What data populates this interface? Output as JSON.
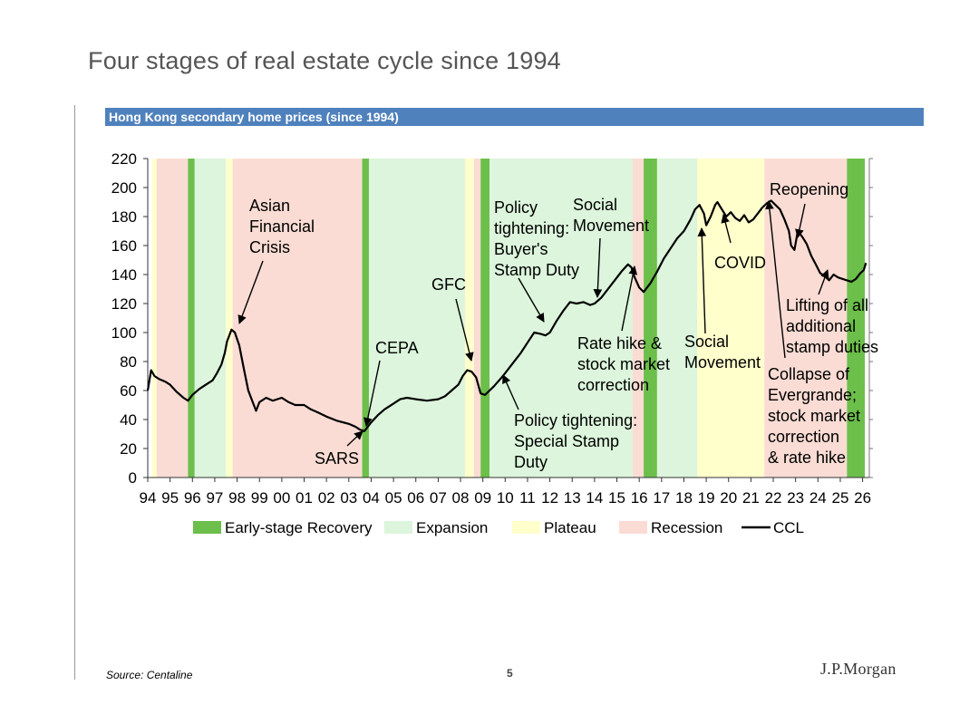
{
  "slide": {
    "title": "Four stages of real estate cycle since 1994",
    "source": "Source: Centaline",
    "page_number": "5",
    "logo": "J.P.Morgan"
  },
  "colors": {
    "banner": "#4f81bd",
    "early": "#6cbf4a",
    "expansion": "#dcf5dc",
    "plateau": "#ffffcc",
    "recession": "#fadcd4",
    "line": "#000000"
  },
  "chart_data": {
    "type": "line",
    "title": "Hong Kong secondary home prices (since 1994)",
    "xlabel": "",
    "ylabel": "",
    "xlim": [
      1994,
      2026.3
    ],
    "ylim": [
      0,
      220
    ],
    "yticks": [
      0,
      20,
      40,
      60,
      80,
      100,
      120,
      140,
      160,
      180,
      200,
      220
    ],
    "xticks": [
      {
        "year": 1994,
        "label": "94"
      },
      {
        "year": 1995,
        "label": "95"
      },
      {
        "year": 1996,
        "label": "96"
      },
      {
        "year": 1997,
        "label": "97"
      },
      {
        "year": 1998,
        "label": "98"
      },
      {
        "year": 1999,
        "label": "99"
      },
      {
        "year": 2000,
        "label": "00"
      },
      {
        "year": 2001,
        "label": "01"
      },
      {
        "year": 2002,
        "label": "02"
      },
      {
        "year": 2003,
        "label": "03"
      },
      {
        "year": 2004,
        "label": "04"
      },
      {
        "year": 2005,
        "label": "05"
      },
      {
        "year": 2006,
        "label": "06"
      },
      {
        "year": 2007,
        "label": "07"
      },
      {
        "year": 2008,
        "label": "08"
      },
      {
        "year": 2009,
        "label": "09"
      },
      {
        "year": 2010,
        "label": "10"
      },
      {
        "year": 2011,
        "label": "11"
      },
      {
        "year": 2012,
        "label": "12"
      },
      {
        "year": 2013,
        "label": "13"
      },
      {
        "year": 2014,
        "label": "14"
      },
      {
        "year": 2015,
        "label": "15"
      },
      {
        "year": 2016,
        "label": "16"
      },
      {
        "year": 2017,
        "label": "17"
      },
      {
        "year": 2018,
        "label": "18"
      },
      {
        "year": 2019,
        "label": "19"
      },
      {
        "year": 2020,
        "label": "20"
      },
      {
        "year": 2021,
        "label": "21"
      },
      {
        "year": 2022,
        "label": "22"
      },
      {
        "year": 2023,
        "label": "23"
      },
      {
        "year": 2024,
        "label": "24"
      },
      {
        "year": 2025,
        "label": "25"
      },
      {
        "year": 2026,
        "label": "26"
      }
    ],
    "stage_bands": [
      {
        "stage": "plateau",
        "start": 1994.2,
        "end": 1994.4
      },
      {
        "stage": "recession",
        "start": 1994.4,
        "end": 1995.8
      },
      {
        "stage": "early",
        "start": 1995.8,
        "end": 1996.1
      },
      {
        "stage": "expansion",
        "start": 1996.1,
        "end": 1997.5
      },
      {
        "stage": "plateau",
        "start": 1997.5,
        "end": 1997.8
      },
      {
        "stage": "recession",
        "start": 1997.8,
        "end": 2003.6
      },
      {
        "stage": "early",
        "start": 2003.6,
        "end": 2003.9
      },
      {
        "stage": "expansion",
        "start": 2003.9,
        "end": 2008.2
      },
      {
        "stage": "plateau",
        "start": 2008.2,
        "end": 2008.6
      },
      {
        "stage": "recession",
        "start": 2008.6,
        "end": 2008.9
      },
      {
        "stage": "early",
        "start": 2008.9,
        "end": 2009.3
      },
      {
        "stage": "expansion",
        "start": 2009.3,
        "end": 2015.7
      },
      {
        "stage": "recession",
        "start": 2015.7,
        "end": 2016.2
      },
      {
        "stage": "early",
        "start": 2016.2,
        "end": 2016.8
      },
      {
        "stage": "expansion",
        "start": 2016.8,
        "end": 2018.6
      },
      {
        "stage": "plateau",
        "start": 2018.6,
        "end": 2021.6
      },
      {
        "stage": "recession",
        "start": 2021.6,
        "end": 2025.3
      },
      {
        "stage": "early",
        "start": 2025.3,
        "end": 2026.1
      }
    ],
    "series": [
      {
        "name": "CCL",
        "x": [
          1994.0,
          1994.15,
          1994.3,
          1994.5,
          1994.8,
          1995.0,
          1995.3,
          1995.6,
          1995.8,
          1996.0,
          1996.3,
          1996.6,
          1996.9,
          1997.1,
          1997.3,
          1997.45,
          1997.55,
          1997.65,
          1997.75,
          1997.9,
          1998.1,
          1998.3,
          1998.5,
          1998.7,
          1998.85,
          1999.0,
          1999.3,
          1999.6,
          2000.0,
          2000.3,
          2000.6,
          2001.0,
          2001.3,
          2001.6,
          2002.0,
          2002.5,
          2003.0,
          2003.3,
          2003.5,
          2003.7,
          2004.0,
          2004.3,
          2004.6,
          2005.0,
          2005.3,
          2005.6,
          2006.0,
          2006.5,
          2007.0,
          2007.3,
          2007.6,
          2007.9,
          2008.1,
          2008.3,
          2008.5,
          2008.7,
          2008.9,
          2009.1,
          2009.5,
          2009.9,
          2010.3,
          2010.7,
          2011.0,
          2011.3,
          2011.6,
          2011.8,
          2012.0,
          2012.3,
          2012.6,
          2012.9,
          2013.2,
          2013.5,
          2013.8,
          2014.0,
          2014.3,
          2014.6,
          2014.9,
          2015.2,
          2015.5,
          2015.65,
          2015.8,
          2016.0,
          2016.2,
          2016.5,
          2016.8,
          2017.1,
          2017.4,
          2017.7,
          2018.0,
          2018.3,
          2018.5,
          2018.7,
          2018.9,
          2019.0,
          2019.2,
          2019.4,
          2019.5,
          2019.7,
          2019.9,
          2020.1,
          2020.3,
          2020.5,
          2020.7,
          2020.9,
          2021.1,
          2021.3,
          2021.5,
          2021.7,
          2021.9,
          2022.1,
          2022.3,
          2022.5,
          2022.7,
          2022.8,
          2022.95,
          2023.1,
          2023.3,
          2023.5,
          2023.7,
          2023.9,
          2024.1,
          2024.3,
          2024.5,
          2024.7,
          2024.9,
          2025.1,
          2025.3,
          2025.5,
          2025.7,
          2025.9,
          2026.05,
          2026.15
        ],
        "values": [
          60,
          74,
          70,
          68,
          66,
          64,
          59,
          55,
          53,
          57,
          61,
          64,
          67,
          72,
          78,
          86,
          94,
          98,
          102,
          100,
          91,
          75,
          60,
          52,
          46,
          52,
          55,
          53,
          55,
          52,
          50,
          50,
          47,
          45,
          42,
          39,
          37,
          35,
          33,
          32,
          38,
          43,
          47,
          51,
          54,
          55,
          54,
          53,
          54,
          56,
          60,
          64,
          70,
          74,
          73,
          69,
          58,
          57,
          63,
          70,
          78,
          86,
          93,
          100,
          99,
          98,
          100,
          108,
          115,
          121,
          120,
          121,
          119,
          120,
          124,
          130,
          136,
          142,
          147,
          145,
          138,
          131,
          128,
          134,
          142,
          151,
          158,
          165,
          170,
          178,
          185,
          188,
          182,
          174,
          180,
          188,
          190,
          185,
          180,
          183,
          179,
          177,
          181,
          176,
          178,
          182,
          186,
          189,
          191,
          188,
          185,
          178,
          170,
          160,
          157,
          170,
          166,
          161,
          153,
          147,
          141,
          139,
          136,
          140,
          138,
          137,
          136,
          135,
          137,
          141,
          143,
          148
        ]
      }
    ],
    "annotations": [
      {
        "id": "asian-financial-crisis",
        "lines": [
          "Asian",
          "Financial",
          "Crisis"
        ]
      },
      {
        "id": "sars",
        "lines": [
          "SARS"
        ]
      },
      {
        "id": "cepa",
        "lines": [
          "CEPA"
        ]
      },
      {
        "id": "gfc",
        "lines": [
          "GFC"
        ]
      },
      {
        "id": "policy-tightening-bsd",
        "lines": [
          "Policy",
          "tightening:",
          "Buyer's",
          "Stamp Duty"
        ]
      },
      {
        "id": "social-movement-1",
        "lines": [
          "Social",
          "Movement"
        ]
      },
      {
        "id": "policy-tightening-ssd",
        "lines": [
          "Policy tightening:",
          "Special Stamp",
          "Duty"
        ]
      },
      {
        "id": "rate-hike",
        "lines": [
          "Rate hike &",
          "stock market",
          "correction"
        ]
      },
      {
        "id": "social-movement-2",
        "lines": [
          "Social",
          "Movement"
        ]
      },
      {
        "id": "covid",
        "lines": [
          "COVID"
        ]
      },
      {
        "id": "reopening",
        "lines": [
          "Reopening"
        ]
      },
      {
        "id": "lifting-stamp-duties",
        "lines": [
          "Lifting of all",
          "additional",
          "stamp duties"
        ]
      },
      {
        "id": "evergrande",
        "lines": [
          "Collapse of",
          "Evergrande;",
          "stock market",
          "correction",
          "& rate hike"
        ]
      }
    ],
    "legend": {
      "position": "bottom",
      "items": [
        {
          "key": "early",
          "label": "Early-stage Recovery",
          "kind": "box"
        },
        {
          "key": "expansion",
          "label": "Expansion",
          "kind": "box"
        },
        {
          "key": "plateau",
          "label": "Plateau",
          "kind": "box"
        },
        {
          "key": "recession",
          "label": "Recession",
          "kind": "box"
        },
        {
          "key": "line",
          "label": "CCL",
          "kind": "line"
        }
      ]
    }
  }
}
